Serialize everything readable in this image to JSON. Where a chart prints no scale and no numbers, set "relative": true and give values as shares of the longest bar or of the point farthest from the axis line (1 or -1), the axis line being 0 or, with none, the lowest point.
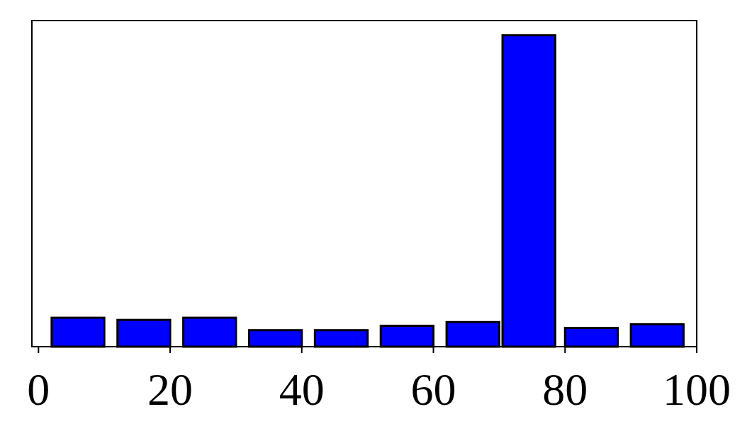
{
  "chart_data": {
    "type": "bar",
    "relative": true,
    "x": [
      6,
      16,
      26,
      36,
      46,
      56,
      66,
      74.5,
      84,
      94
    ],
    "values": [
      0.093,
      0.086,
      0.093,
      0.053,
      0.053,
      0.067,
      0.079,
      1,
      0.06,
      0.072
    ],
    "color": "#0000ff",
    "xlim": [
      -1,
      100
    ],
    "xticks": [
      0,
      20,
      40,
      60,
      80,
      100
    ]
  }
}
